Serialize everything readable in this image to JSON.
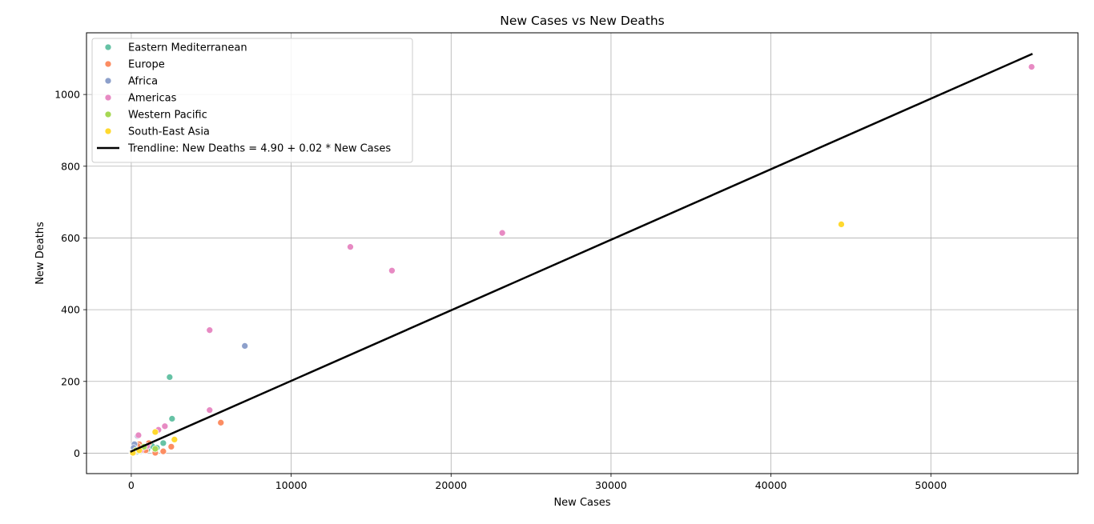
{
  "chart_data": {
    "type": "scatter",
    "title": "New Cases vs New Deaths",
    "xlabel": "New Cases",
    "ylabel": "New Deaths",
    "xlim": [
      -2800,
      59200
    ],
    "ylim": [
      -57,
      1172
    ],
    "xticks": [
      0,
      10000,
      20000,
      30000,
      40000,
      50000
    ],
    "yticks": [
      0,
      200,
      400,
      600,
      800,
      1000
    ],
    "grid": true,
    "legend_position": "top-left",
    "series": [
      {
        "name": "Eastern Mediterranean",
        "color": "#66c2a5",
        "points": [
          [
            2400,
            212
          ],
          [
            2550,
            96
          ],
          [
            2000,
            28
          ],
          [
            1600,
            15
          ],
          [
            1000,
            10
          ],
          [
            300,
            3
          ],
          [
            150,
            2
          ],
          [
            50,
            1
          ],
          [
            600,
            6
          ],
          [
            1300,
            20
          ]
        ]
      },
      {
        "name": "Europe",
        "color": "#fc8d62",
        "points": [
          [
            5600,
            85
          ],
          [
            2500,
            18
          ],
          [
            2000,
            5
          ],
          [
            1500,
            1
          ],
          [
            1100,
            28
          ],
          [
            500,
            25
          ],
          [
            700,
            12
          ],
          [
            300,
            15
          ],
          [
            900,
            8
          ],
          [
            200,
            5
          ],
          [
            400,
            20
          ],
          [
            100,
            2
          ]
        ]
      },
      {
        "name": "Africa",
        "color": "#8da0cb",
        "points": [
          [
            7100,
            299
          ],
          [
            400,
            48
          ],
          [
            200,
            25
          ],
          [
            100,
            5
          ],
          [
            50,
            2
          ],
          [
            300,
            10
          ],
          [
            150,
            15
          ],
          [
            80,
            1
          ]
        ]
      },
      {
        "name": "Americas",
        "color": "#e78ac3",
        "points": [
          [
            56300,
            1077
          ],
          [
            23200,
            614
          ],
          [
            13700,
            575
          ],
          [
            16300,
            509
          ],
          [
            4900,
            343
          ],
          [
            4900,
            120
          ],
          [
            2100,
            75
          ],
          [
            1700,
            65
          ],
          [
            450,
            50
          ],
          [
            600,
            8
          ],
          [
            200,
            3
          ],
          [
            1000,
            20
          ]
        ]
      },
      {
        "name": "Western Pacific",
        "color": "#a6d854",
        "points": [
          [
            1500,
            12
          ],
          [
            800,
            18
          ],
          [
            300,
            8
          ],
          [
            100,
            2
          ]
        ]
      },
      {
        "name": "South-East Asia",
        "color": "#ffd92f",
        "points": [
          [
            44400,
            638
          ],
          [
            2700,
            38
          ],
          [
            1500,
            59
          ],
          [
            500,
            8
          ],
          [
            100,
            1
          ]
        ]
      }
    ],
    "trendline": {
      "label": "Trendline: New Deaths = 4.90 + 0.02 * New Cases",
      "intercept": 4.9,
      "slope": 0.01967,
      "x_range": [
        0,
        56300
      ],
      "color": "#000000"
    }
  }
}
